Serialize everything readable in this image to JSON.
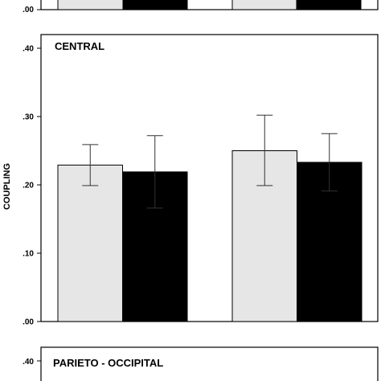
{
  "chart_data": [
    {
      "type": "bar",
      "title": "",
      "ylabel": "",
      "ylim": [
        0,
        0.4
      ],
      "groups": 2,
      "visible_ticks": [
        ".00"
      ],
      "series": [
        {
          "color": "#e6e6e6",
          "values": [
            null,
            null
          ]
        },
        {
          "color": "#000000",
          "values": [
            null,
            null
          ]
        }
      ]
    },
    {
      "type": "bar",
      "title": "CENTRAL",
      "ylabel": "COUPLING",
      "ylim": [
        0,
        0.4
      ],
      "yticks": [
        ".00",
        ".10",
        ".20",
        ".30",
        ".40"
      ],
      "groups": 2,
      "series": [
        {
          "color": "#e6e6e6",
          "values": [
            0.229,
            0.25
          ],
          "err_high": [
            0.259,
            0.302
          ],
          "err_low": [
            0.199,
            0.199
          ]
        },
        {
          "color": "#000000",
          "values": [
            0.219,
            0.233
          ],
          "err_high": [
            0.272,
            0.275
          ],
          "err_low": [
            0.166,
            0.191
          ]
        }
      ]
    },
    {
      "type": "bar",
      "title": "PARIETO - OCCIPITAL",
      "ylabel": "",
      "ylim": [
        0,
        0.4
      ],
      "visible_ticks": [
        ".40"
      ],
      "groups": 2,
      "series": []
    }
  ]
}
